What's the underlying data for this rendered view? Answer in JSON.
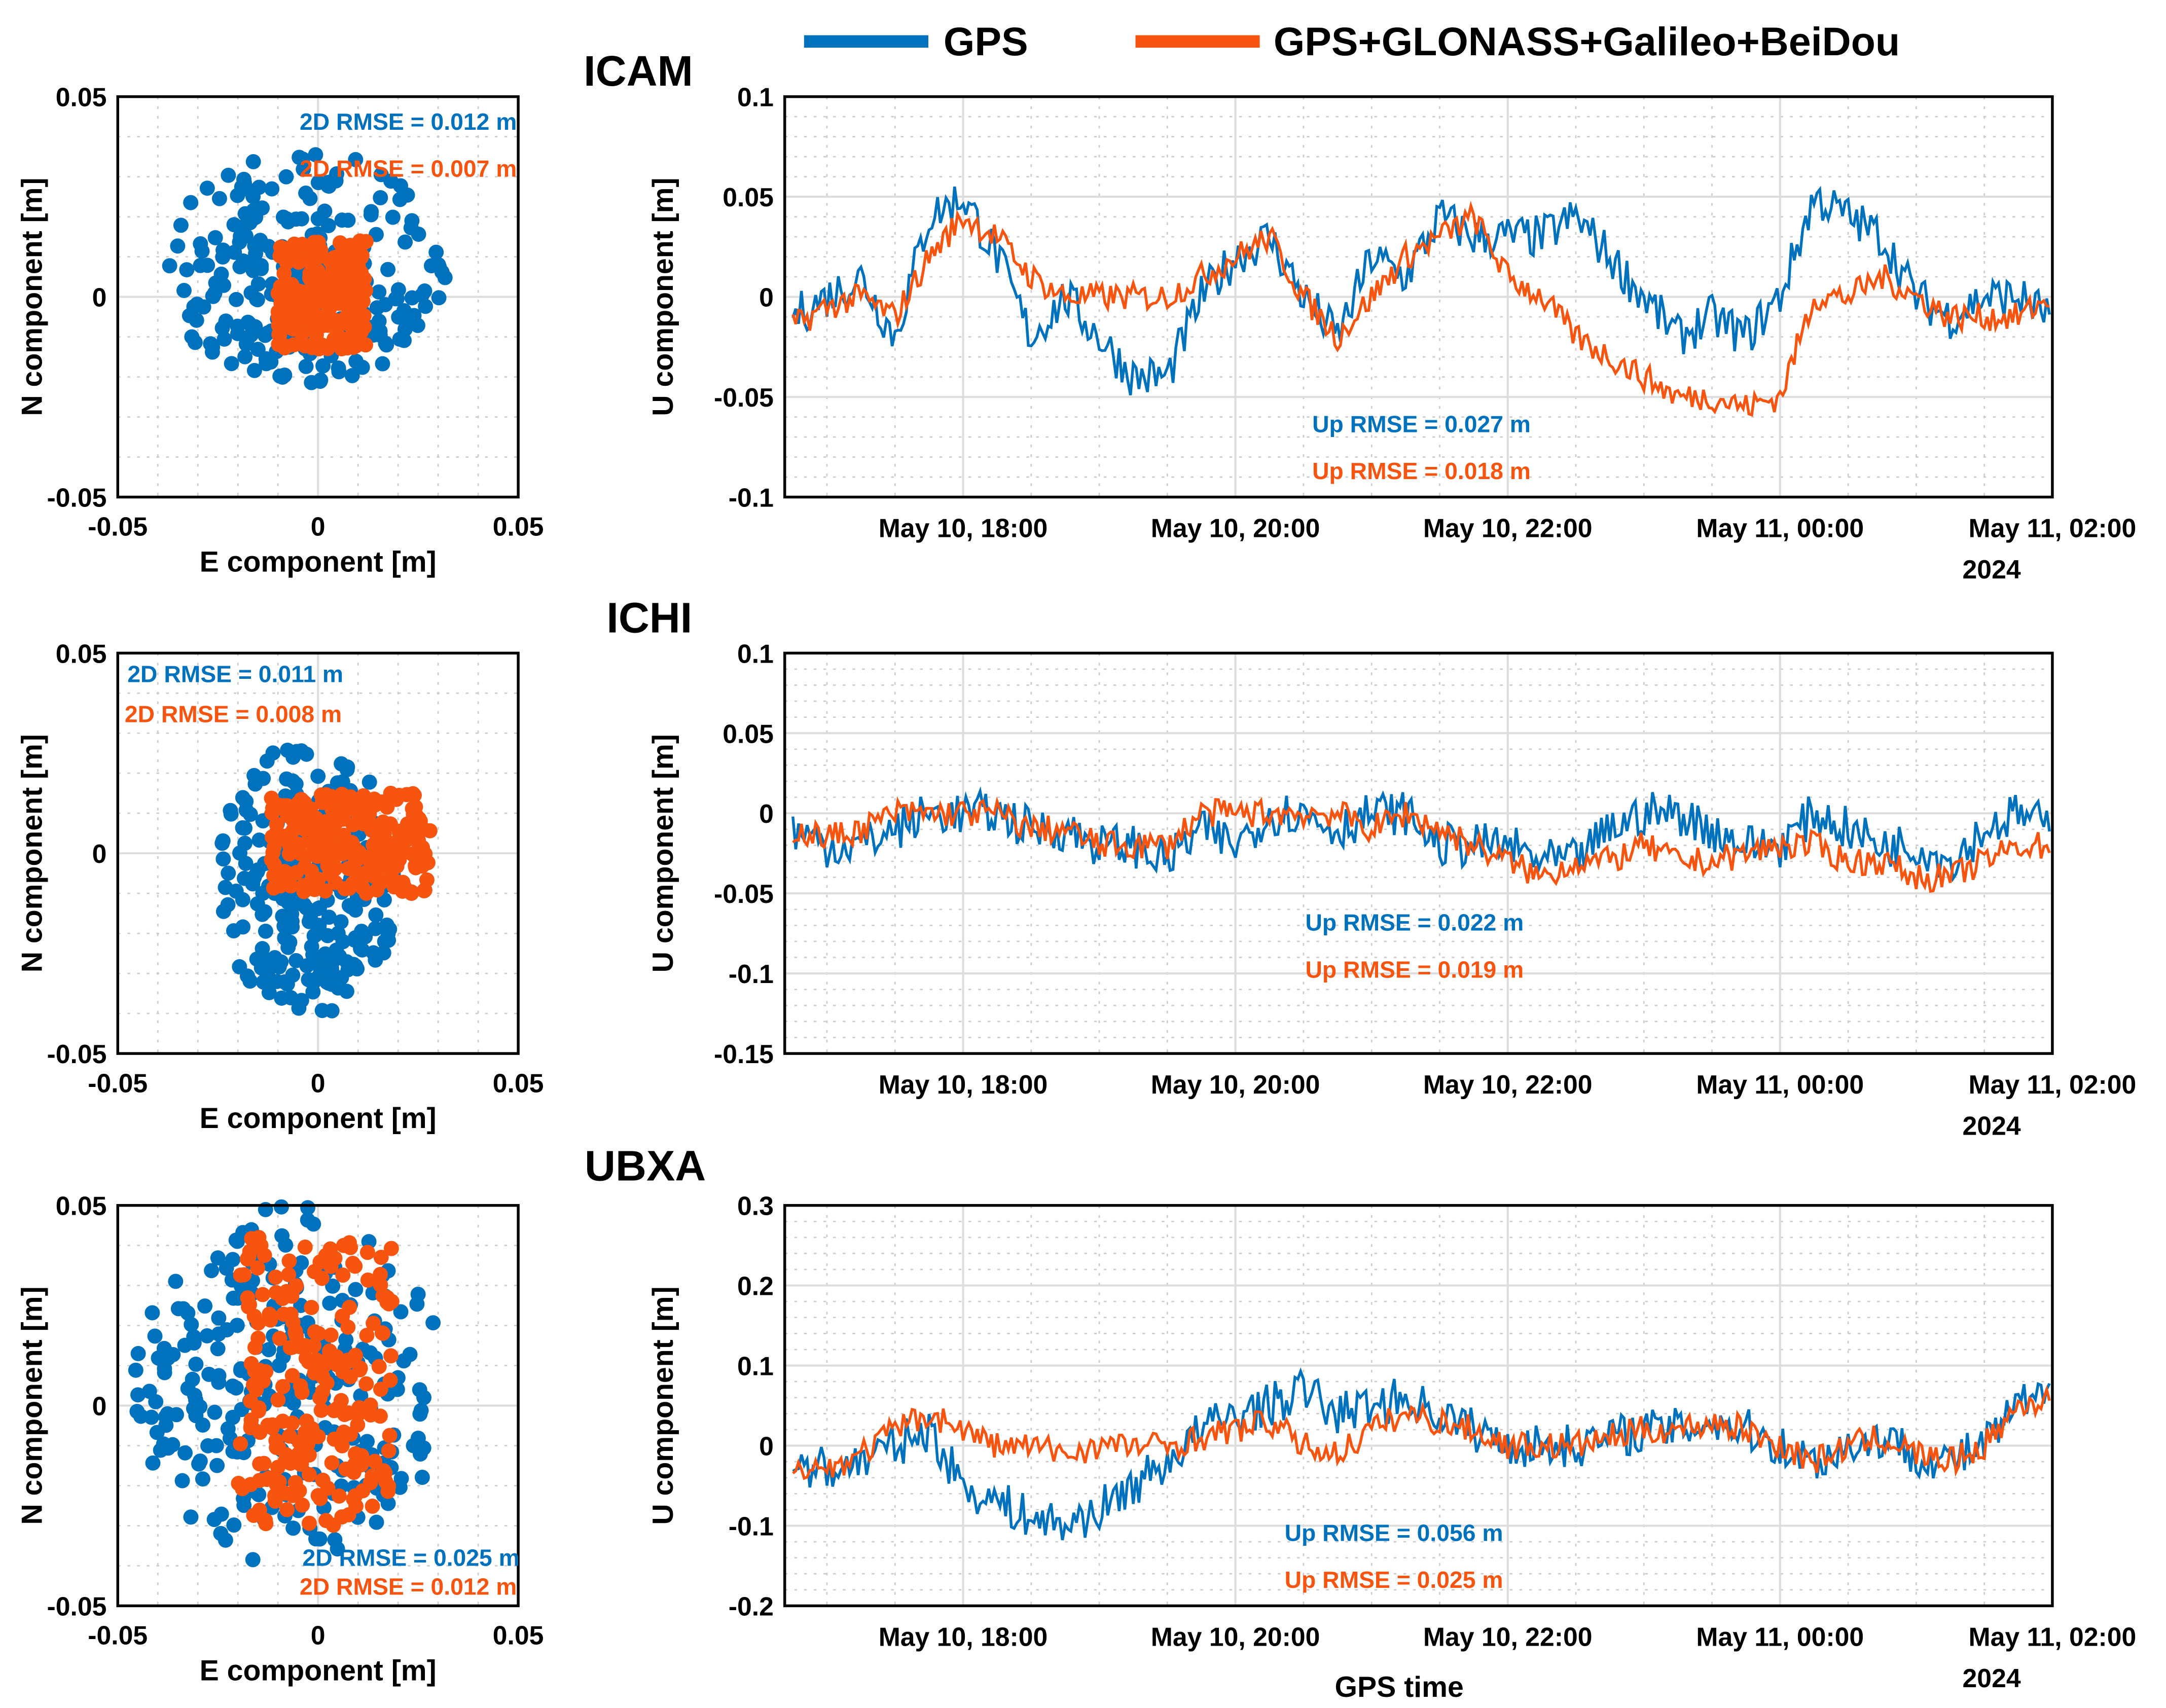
{
  "colors": {
    "gps": "#0072BD",
    "multi": "#F75410"
  },
  "legend": {
    "gps": "GPS",
    "multi": "GPS+GLONASS+Galileo+BeiDou"
  },
  "common": {
    "e_label": "E component [m]",
    "n_label": "N component [m]",
    "u_label": "U component [m]",
    "time_label": "GPS time",
    "year": "2024",
    "time_ticks": [
      "May 10, 18:00",
      "May 10, 20:00",
      "May 10, 22:00",
      "May 11, 00:00",
      "May 11, 02:00"
    ],
    "scatter_ticks": [
      "-0.05",
      "0",
      "0.05"
    ]
  },
  "chart_data": [
    {
      "station": "ICAM",
      "type": "scatter",
      "xlim": [
        -0.05,
        0.05
      ],
      "ylim": [
        -0.05,
        0.05
      ],
      "rmse": {
        "gps": "2D RMSE = 0.012 m",
        "multi": "2D RMSE = 0.007 m"
      },
      "clusters": {
        "gps": {
          "e": [
            -0.04,
            0.032
          ],
          "n": [
            -0.022,
            0.037
          ]
        },
        "multi": {
          "e": [
            -0.01,
            0.012
          ],
          "n": [
            -0.013,
            0.014
          ]
        }
      }
    },
    {
      "station": "ICAM",
      "type": "line",
      "xlim_hours": [
        16.69,
        26.0
      ],
      "ylim": [
        -0.1,
        0.1
      ],
      "yticks": [
        "0.1",
        "0.05",
        "0",
        "-0.05",
        "-0.1"
      ],
      "ytick_vals": [
        0.1,
        0.05,
        0,
        -0.05,
        -0.1
      ],
      "rmse": {
        "gps": "Up RMSE = 0.027 m",
        "multi": "Up RMSE = 0.018 m"
      },
      "x_start_hour": 16.75,
      "x_step_hours": 0.25,
      "series": [
        {
          "name": "GPS",
          "values": [
            -0.01,
            0,
            0.01,
            -0.02,
            0.04,
            0.05,
            0.02,
            -0.02,
            0,
            -0.02,
            -0.04,
            -0.04,
            0,
            0.02,
            0.03,
            0,
            -0.02,
            0.02,
            0.01,
            0.04,
            0.03,
            0.03,
            0.03,
            0.04,
            0.02,
            0,
            -0.02,
            -0.01,
            -0.02,
            0,
            0.05,
            0.04,
            0.03,
            0,
            -0.01,
            0,
            0,
            -0.01
          ]
        },
        {
          "name": "GPS+GLONASS+Galileo+BeiDou",
          "values": [
            -0.015,
            -0.005,
            0,
            -0.01,
            0.02,
            0.04,
            0.03,
            0.01,
            0,
            0,
            0,
            0,
            0.01,
            0.02,
            0.03,
            0,
            -0.02,
            0,
            0.02,
            0.03,
            0.04,
            0.01,
            0,
            -0.02,
            -0.03,
            -0.04,
            -0.05,
            -0.05,
            -0.055,
            -0.05,
            0,
            0,
            0.01,
            0,
            -0.01,
            -0.01,
            -0.01,
            0
          ]
        }
      ]
    },
    {
      "station": "ICHI",
      "type": "scatter",
      "xlim": [
        -0.05,
        0.05
      ],
      "ylim": [
        -0.05,
        0.05
      ],
      "rmse": {
        "gps": "2D RMSE = 0.011 m",
        "multi": "2D RMSE = 0.008 m"
      },
      "clusters": {
        "gps": {
          "e": [
            -0.025,
            0.02
          ],
          "n": [
            -0.041,
            0.028
          ]
        },
        "multi": {
          "e": [
            -0.012,
            0.028
          ],
          "n": [
            -0.01,
            0.015
          ]
        }
      }
    },
    {
      "station": "ICHI",
      "type": "line",
      "xlim_hours": [
        16.69,
        26.0
      ],
      "ylim": [
        -0.15,
        0.1
      ],
      "yticks": [
        "0.1",
        "0.05",
        "0",
        "-0.05",
        "-0.1",
        "-0.15"
      ],
      "ytick_vals": [
        0.1,
        0.05,
        0,
        -0.05,
        -0.1,
        -0.15
      ],
      "rmse": {
        "gps": "Up RMSE = 0.022 m",
        "multi": "Up RMSE = 0.019 m"
      },
      "x_start_hour": 16.75,
      "x_step_hours": 0.25,
      "series": [
        {
          "name": "GPS",
          "values": [
            -0.01,
            -0.02,
            -0.02,
            -0.01,
            0,
            0,
            0,
            -0.01,
            -0.01,
            -0.02,
            -0.02,
            -0.03,
            -0.01,
            -0.02,
            0,
            0,
            -0.01,
            0,
            0,
            -0.02,
            -0.02,
            -0.02,
            -0.03,
            -0.03,
            -0.01,
            0,
            0,
            -0.01,
            -0.02,
            -0.02,
            0,
            -0.01,
            -0.02,
            -0.02,
            -0.03,
            -0.01,
            0,
            -0.01
          ]
        },
        {
          "name": "GPS+GLONASS+Galileo+BeiDou",
          "values": [
            -0.01,
            -0.015,
            -0.01,
            0,
            0,
            0,
            0,
            -0.01,
            -0.01,
            -0.02,
            -0.02,
            -0.02,
            0,
            0,
            0,
            0,
            0,
            -0.01,
            0,
            -0.01,
            -0.02,
            -0.03,
            -0.04,
            -0.03,
            -0.03,
            -0.02,
            -0.03,
            -0.03,
            -0.025,
            -0.02,
            -0.02,
            -0.03,
            -0.03,
            -0.04,
            -0.04,
            -0.03,
            -0.02,
            -0.02
          ]
        }
      ]
    },
    {
      "station": "UBXA",
      "type": "scatter",
      "xlim": [
        -0.05,
        0.05
      ],
      "ylim": [
        -0.05,
        0.05
      ],
      "rmse": {
        "gps": "2D RMSE = 0.025 m",
        "multi": "2D RMSE = 0.012 m"
      },
      "clusters": {
        "gps": {
          "e": [
            -0.046,
            0.032
          ],
          "n": [
            -0.04,
            0.05
          ]
        },
        "multi": {
          "e": [
            -0.02,
            0.02
          ],
          "n": [
            -0.03,
            0.042
          ]
        }
      }
    },
    {
      "station": "UBXA",
      "type": "line",
      "xlim_hours": [
        16.69,
        26.0
      ],
      "ylim": [
        -0.2,
        0.3
      ],
      "yticks": [
        "0.3",
        "0.2",
        "0.1",
        "0",
        "-0.1",
        "-0.2"
      ],
      "ytick_vals": [
        0.3,
        0.2,
        0.1,
        0,
        -0.1,
        -0.2
      ],
      "rmse": {
        "gps": "Up RMSE = 0.056 m",
        "multi": "Up RMSE = 0.025 m"
      },
      "x_start_hour": 16.75,
      "x_step_hours": 0.25,
      "series": [
        {
          "name": "GPS",
          "values": [
            -0.02,
            -0.03,
            -0.02,
            0,
            0.02,
            -0.05,
            -0.07,
            -0.09,
            -0.1,
            -0.08,
            -0.05,
            -0.02,
            0.02,
            0.04,
            0.05,
            0.07,
            0.04,
            0.05,
            0.06,
            0.04,
            0.02,
            0,
            0,
            0,
            0.01,
            0.02,
            0.02,
            0.03,
            0.02,
            0,
            -0.02,
            0,
            0.01,
            -0.01,
            -0.02,
            0,
            0.05,
            0.06
          ]
        },
        {
          "name": "GPS+GLONASS+Galileo+BeiDou",
          "values": [
            -0.02,
            -0.03,
            -0.01,
            0.02,
            0.04,
            0.02,
            0,
            0,
            -0.01,
            0,
            0,
            0,
            0.01,
            0.02,
            0.03,
            0,
            -0.01,
            0.02,
            0.04,
            0.03,
            0.02,
            0,
            0,
            0,
            0.01,
            0.02,
            0.02,
            0.03,
            0.02,
            0,
            -0.02,
            0,
            0.01,
            -0.01,
            -0.02,
            0,
            0.05,
            0.06
          ]
        }
      ]
    }
  ]
}
